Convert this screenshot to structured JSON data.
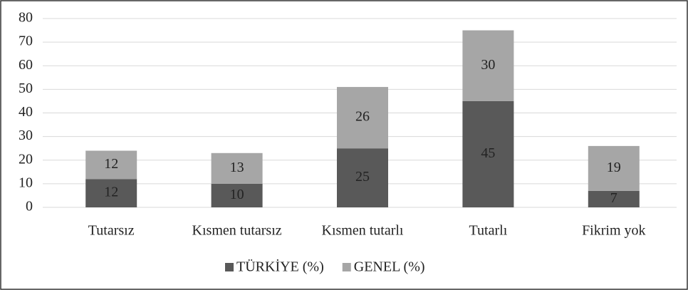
{
  "chart_data": {
    "type": "stacked_bar",
    "categories": [
      "Tutarsız",
      "Kısmen tutarsız",
      "Kısmen tutarlı",
      "Tutarlı",
      "Fikrim yok"
    ],
    "series": [
      {
        "name": "TÜRKİYE (%)",
        "color": "#595959",
        "values": [
          12,
          10,
          25,
          45,
          7
        ]
      },
      {
        "name": "GENEL (%)",
        "color": "#a6a6a6",
        "values": [
          12,
          13,
          26,
          30,
          19
        ]
      }
    ],
    "ylim": [
      0,
      80
    ],
    "yticks": [
      0,
      10,
      20,
      30,
      40,
      50,
      60,
      70,
      80
    ],
    "grid": true,
    "legend": "bottom"
  }
}
